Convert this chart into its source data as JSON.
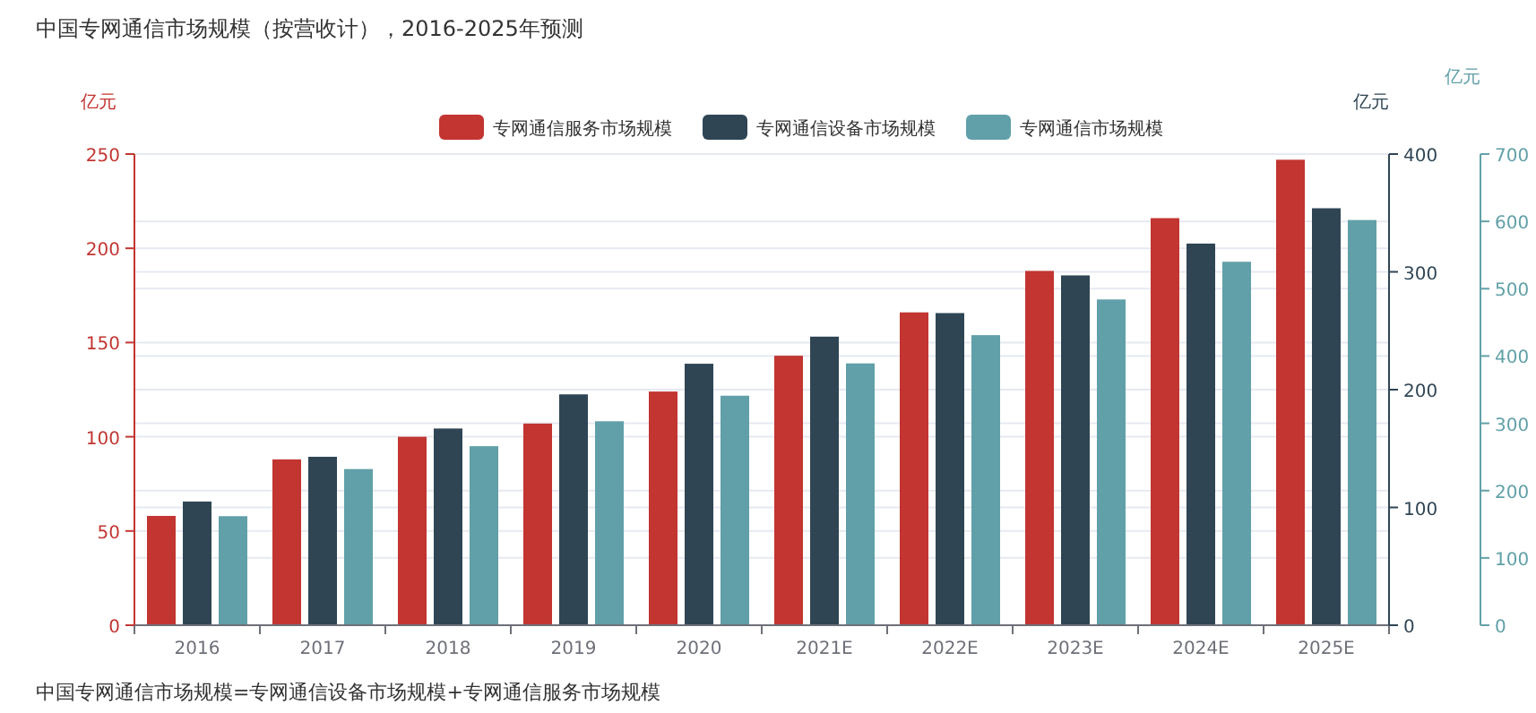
{
  "chart_data": {
    "type": "bar",
    "title": "中国专网通信市场规模（按营收计），2016-2025年预测",
    "categories": [
      "2016",
      "2017",
      "2018",
      "2019",
      "2020",
      "2021E",
      "2022E",
      "2023E",
      "2024E",
      "2025E"
    ],
    "series": [
      {
        "name": "专网通信服务市场规模",
        "color": "#c23531",
        "values": [
          58,
          88,
          100,
          107,
          124,
          143,
          166,
          188,
          216,
          247
        ]
      },
      {
        "name": "专网通信设备市场规模",
        "color": "#2f4554",
        "axis": "y2",
        "values": [
          105,
          143,
          167,
          196,
          222,
          245,
          265,
          297,
          324,
          354
        ]
      },
      {
        "name": "专网通信市场规模",
        "color": "#61a0a8",
        "axis": "y3",
        "values": [
          162,
          232,
          266,
          303,
          341,
          389,
          431,
          484,
          540,
          602
        ]
      }
    ],
    "ylabel": "亿元",
    "y2label": "亿元",
    "y3label": "亿元",
    "ylim": [
      0,
      250
    ],
    "yticks": [
      0,
      50,
      100,
      150,
      200,
      250
    ],
    "y2lim": [
      0,
      400
    ],
    "y2ticks": [
      0,
      100,
      200,
      300,
      400
    ],
    "y3lim": [
      0,
      700
    ],
    "y3ticks": [
      0,
      100,
      200,
      300,
      400,
      500,
      600,
      700
    ],
    "grid": "y",
    "legend": "top",
    "annotations": [
      "中国专网通信市场规模=专网通信设备市场规模+专网通信服务市场规模"
    ]
  }
}
